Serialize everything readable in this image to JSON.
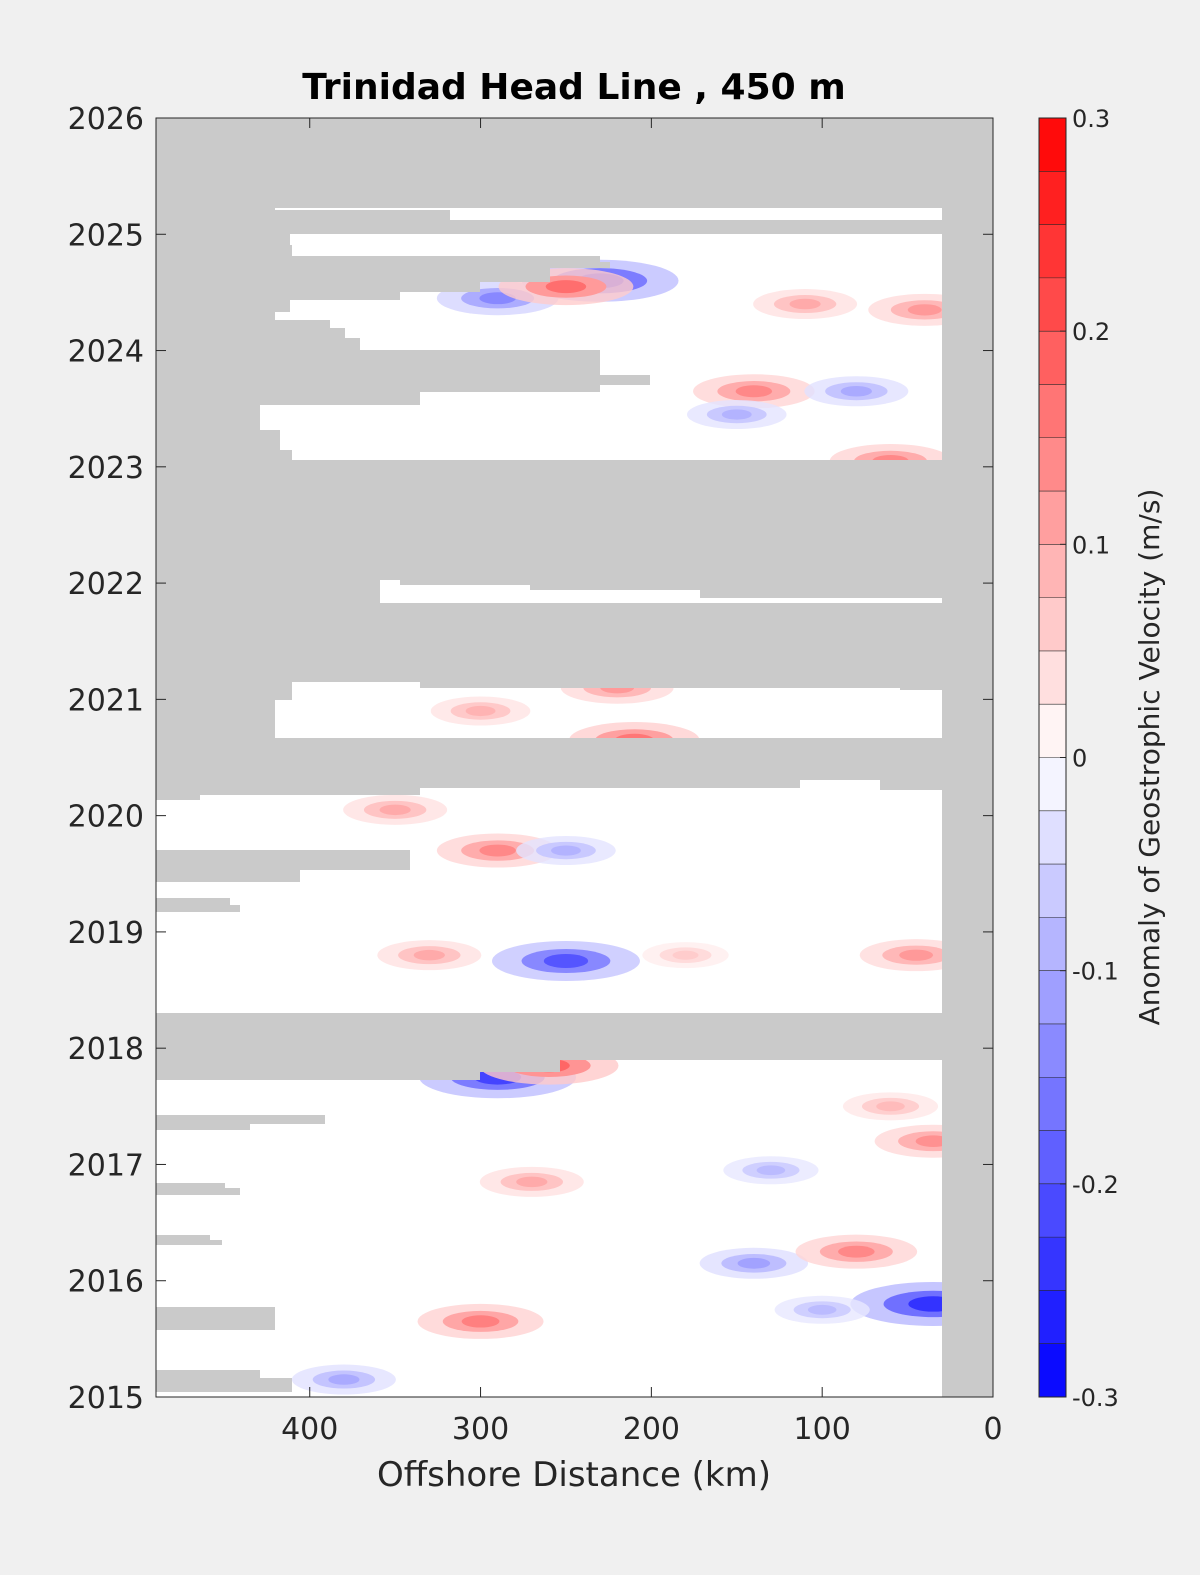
{
  "chart_data": {
    "type": "heatmap",
    "title": "Trinidad Head Line , 450 m",
    "xlabel": "Offshore Distance (km)",
    "ylabel": "",
    "xlim": [
      490,
      0
    ],
    "ylim": [
      2015,
      2026
    ],
    "x_ticks": [
      400,
      300,
      200,
      100,
      0
    ],
    "y_ticks": [
      2015,
      2016,
      2017,
      2018,
      2019,
      2020,
      2021,
      2022,
      2023,
      2024,
      2025,
      2026
    ],
    "colorbar": {
      "label": "Anomaly of Geostrophic Velocity (m/s)",
      "ticks": [
        -0.3,
        -0.2,
        -0.1,
        0,
        0.1,
        0.2,
        0.3
      ],
      "range": [
        -0.3,
        0.3
      ],
      "levels": 24,
      "low_color": "#0000ff",
      "mid_color": "#ffffff",
      "high_color": "#ff0000"
    },
    "nodata_color": "#cacaca",
    "missing_data_periods": [
      {
        "from": 2025.25,
        "to": 2026,
        "x_range": [
          490,
          0
        ]
      },
      {
        "from": 2022.9,
        "to": 2023.0,
        "x_range": [
          490,
          0
        ]
      },
      {
        "from": 2022.0,
        "to": 2022.9,
        "x_range": [
          490,
          0
        ]
      },
      {
        "from": 2021.1,
        "to": 2021.8,
        "x_range": [
          490,
          0
        ]
      },
      {
        "from": 2020.15,
        "to": 2020.55,
        "x_range": [
          490,
          0
        ]
      },
      {
        "from": 2017.85,
        "to": 2018.3,
        "x_range": [
          490,
          0
        ]
      },
      {
        "from": 2015,
        "to": 2026,
        "x_range": [
          30,
          0
        ]
      }
    ],
    "anomaly_features": [
      {
        "x": 290,
        "t": 2017.75,
        "value": -0.22
      },
      {
        "x": 260,
        "t": 2017.85,
        "value": 0.18
      },
      {
        "x": 250,
        "t": 2018.75,
        "value": -0.2
      },
      {
        "x": 180,
        "t": 2018.8,
        "value": 0.06
      },
      {
        "x": 330,
        "t": 2018.8,
        "value": 0.1
      },
      {
        "x": 45,
        "t": 2018.8,
        "value": 0.12
      },
      {
        "x": 290,
        "t": 2019.7,
        "value": 0.14
      },
      {
        "x": 250,
        "t": 2019.7,
        "value": -0.09
      },
      {
        "x": 350,
        "t": 2020.05,
        "value": 0.1
      },
      {
        "x": 210,
        "t": 2020.65,
        "value": 0.16
      },
      {
        "x": 300,
        "t": 2020.9,
        "value": 0.09
      },
      {
        "x": 220,
        "t": 2021.1,
        "value": 0.12
      },
      {
        "x": 60,
        "t": 2023.05,
        "value": 0.14
      },
      {
        "x": 140,
        "t": 2023.65,
        "value": 0.14
      },
      {
        "x": 80,
        "t": 2023.65,
        "value": -0.1
      },
      {
        "x": 150,
        "t": 2023.45,
        "value": -0.09
      },
      {
        "x": 230,
        "t": 2024.6,
        "value": -0.22
      },
      {
        "x": 290,
        "t": 2024.45,
        "value": -0.14
      },
      {
        "x": 250,
        "t": 2024.55,
        "value": 0.17
      },
      {
        "x": 40,
        "t": 2024.35,
        "value": 0.12
      },
      {
        "x": 110,
        "t": 2024.4,
        "value": 0.1
      },
      {
        "x": 300,
        "t": 2015.65,
        "value": 0.15
      },
      {
        "x": 380,
        "t": 2015.15,
        "value": -0.1
      },
      {
        "x": 35,
        "t": 2015.8,
        "value": -0.24
      },
      {
        "x": 100,
        "t": 2015.75,
        "value": -0.08
      },
      {
        "x": 140,
        "t": 2016.15,
        "value": -0.11
      },
      {
        "x": 80,
        "t": 2016.25,
        "value": 0.14
      },
      {
        "x": 270,
        "t": 2016.85,
        "value": 0.1
      },
      {
        "x": 60,
        "t": 2017.5,
        "value": 0.08
      },
      {
        "x": 130,
        "t": 2016.95,
        "value": -0.08
      },
      {
        "x": 35,
        "t": 2017.2,
        "value": 0.13
      }
    ]
  }
}
